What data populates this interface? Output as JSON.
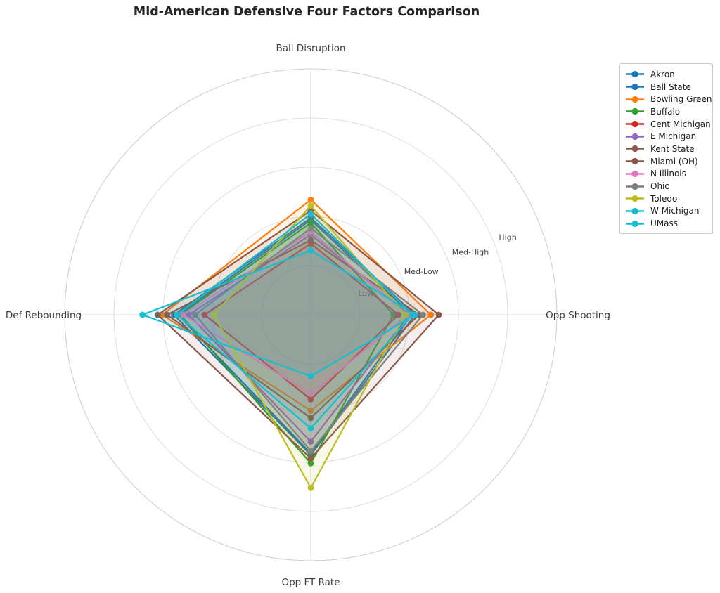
{
  "chart_data": {
    "type": "radar",
    "title": "Mid-American Defensive Four Factors Comparison",
    "axes": [
      "Ball Disruption",
      "Opp Shooting",
      "Opp FT Rate",
      "Def Rebounding"
    ],
    "radial_tick_labels": [
      "Low",
      "Med-Low",
      "Med-High",
      "High"
    ],
    "radial_tick_values": [
      1,
      2,
      3,
      4
    ],
    "r_max": 5,
    "grid": true,
    "legend_position": "upper right",
    "style": {
      "grid_color": "#dcdcdc",
      "spine_color": "#cfcfcf",
      "title_color": "#262626",
      "axis_label_color": "#3a3a3a",
      "tick_label_color": "#3f3f3f",
      "fill_opacity": 0.1,
      "background": "#ffffff"
    },
    "series": [
      {
        "name": "Akron",
        "color": "#1f77b4",
        "values": [
          1.97,
          2.12,
          2.85,
          2.78
        ]
      },
      {
        "name": "Ball State",
        "color": "#1f77b4",
        "values": [
          1.93,
          2.05,
          2.82,
          2.7
        ]
      },
      {
        "name": "Bowling Green",
        "color": "#ff7f0e",
        "values": [
          2.34,
          2.44,
          1.95,
          3.02
        ]
      },
      {
        "name": "Buffalo",
        "color": "#2ca02c",
        "values": [
          1.87,
          1.68,
          3.02,
          2.65
        ]
      },
      {
        "name": "Cent Michigan",
        "color": "#d62728",
        "values": [
          1.45,
          1.78,
          1.72,
          2.16
        ]
      },
      {
        "name": "E Michigan",
        "color": "#9467bd",
        "values": [
          1.63,
          2.0,
          2.58,
          2.48
        ]
      },
      {
        "name": "Kent State",
        "color": "#8c564b",
        "values": [
          1.52,
          2.2,
          2.1,
          2.92
        ]
      },
      {
        "name": "Miami (OH)",
        "color": "#8c564b",
        "values": [
          2.12,
          2.6,
          2.92,
          3.11
        ]
      },
      {
        "name": "N Illinois",
        "color": "#e377c2",
        "values": [
          1.69,
          1.97,
          1.61,
          2.59
        ]
      },
      {
        "name": "Ohio",
        "color": "#7f7f7f",
        "values": [
          1.76,
          2.28,
          2.77,
          2.35
        ]
      },
      {
        "name": "Toledo",
        "color": "#bcbd22",
        "values": [
          2.22,
          1.92,
          3.52,
          1.97
        ]
      },
      {
        "name": "W Michigan",
        "color": "#17becf",
        "values": [
          2.05,
          2.07,
          2.31,
          2.72
        ]
      },
      {
        "name": "UMass",
        "color": "#17becf",
        "values": [
          1.31,
          2.12,
          1.25,
          3.42
        ]
      }
    ]
  }
}
